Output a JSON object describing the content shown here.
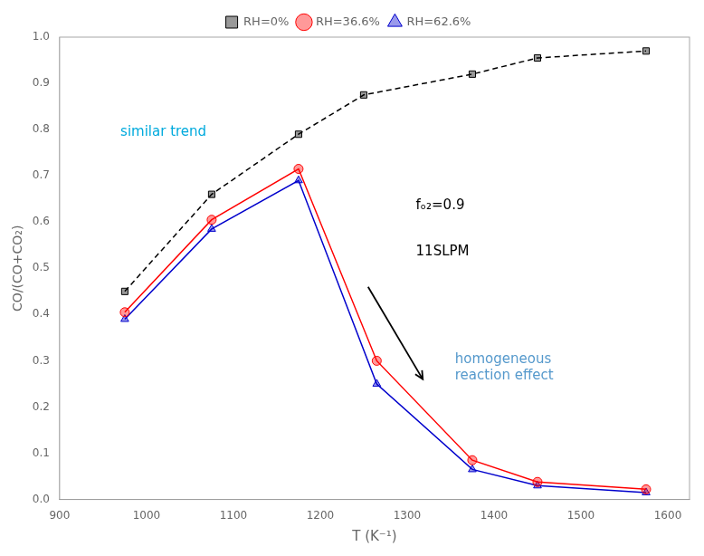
{
  "chart_data": {
    "type": "line",
    "xlabel": "T (K⁻¹)",
    "ylabel": "CO/(CO+CO₂)",
    "series": [
      {
        "name": "RH=0%",
        "x": [
          975,
          1075,
          1175,
          1250,
          1375,
          1450,
          1575
        ],
        "values": [
          0.45,
          0.66,
          0.79,
          0.875,
          0.92,
          0.955,
          0.97
        ],
        "color": "#000000",
        "marker": "square",
        "line_style": "dashed"
      },
      {
        "name": "RH=36.6%",
        "x": [
          975,
          1075,
          1175,
          1265,
          1375,
          1450,
          1575
        ],
        "values": [
          0.405,
          0.605,
          0.715,
          0.3,
          0.085,
          0.038,
          0.022
        ],
        "color": "#ff0000",
        "marker": "circle",
        "line_style": "solid"
      },
      {
        "name": "RH=62.6%",
        "x": [
          975,
          1075,
          1175,
          1265,
          1375,
          1450,
          1575
        ],
        "values": [
          0.39,
          0.585,
          0.69,
          0.25,
          0.065,
          0.03,
          0.015
        ],
        "color": "#0000cc",
        "marker": "triangle",
        "line_style": "solid"
      }
    ],
    "xlim": [
      900,
      1625
    ],
    "ylim": [
      0.0,
      1.0
    ],
    "xticks": [
      900,
      1000,
      1100,
      1200,
      1300,
      1400,
      1500,
      1600
    ],
    "yticks": [
      {
        "value": 0.0,
        "label": "0.0"
      },
      0.1,
      0.2,
      0.3,
      0.4,
      0.5,
      0.6,
      0.7,
      0.8,
      0.9,
      {
        "value": 1.0,
        "label": "1.0"
      }
    ],
    "grid": false,
    "legend": "top",
    "annotations": [
      {
        "text": "similar trend",
        "x": 970,
        "y": 0.795,
        "color": "#00aadd"
      },
      {
        "text": "homogeneous\nreaction effect",
        "x": 1355,
        "y": 0.285,
        "color": "#5599cc"
      },
      {
        "text": "fₒ₂=0.9",
        "x": 1310,
        "y": 0.635,
        "color": "#000000"
      },
      {
        "text": "11SLPM",
        "x": 1310,
        "y": 0.535,
        "color": "#000000"
      }
    ],
    "arrows": [
      {
        "x": 1255,
        "y": 0.46,
        "x_end": 1318,
        "y_end": 0.26
      }
    ]
  }
}
